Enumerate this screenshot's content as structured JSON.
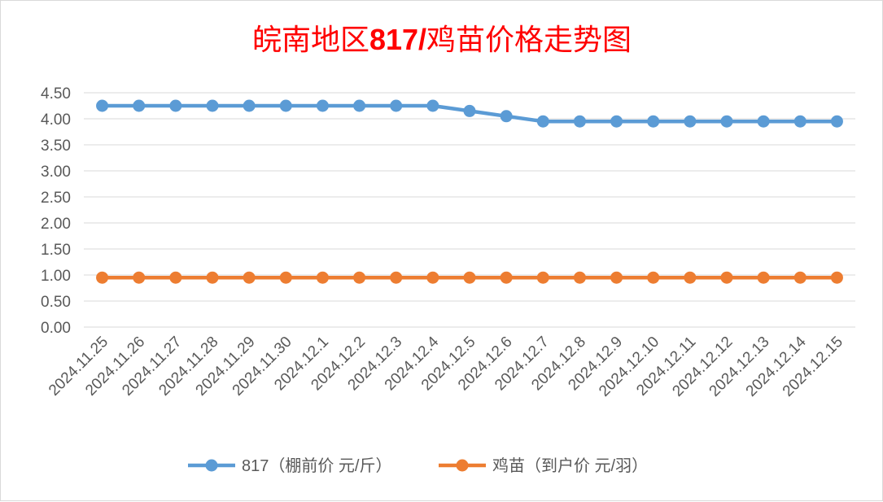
{
  "chart_data": {
    "type": "line",
    "title_cn": "皖南地区",
    "title_num": "817/",
    "title_cn2": "鸡苗价格走势图",
    "categories": [
      "2024.11.25",
      "2024.11.26",
      "2024.11.27",
      "2024.11.28",
      "2024.11.29",
      "2024.11.30",
      "2024.12.1",
      "2024.12.2",
      "2024.12.3",
      "2024.12.4",
      "2024.12.5",
      "2024.12.6",
      "2024.12.7",
      "2024.12.8",
      "2024.12.9",
      "2024.12.10",
      "2024.12.11",
      "2024.12.12",
      "2024.12.13",
      "2024.12.14",
      "2024.12.15"
    ],
    "ylim": [
      0,
      4.5
    ],
    "yticks": [
      "0.00",
      "0.50",
      "1.00",
      "1.50",
      "2.00",
      "2.50",
      "3.00",
      "3.50",
      "4.00",
      "4.50"
    ],
    "grid": true,
    "legend_position": "bottom",
    "series": [
      {
        "name": "817（棚前价 元/斤）",
        "color": "#5b9bd5",
        "values": [
          4.25,
          4.25,
          4.25,
          4.25,
          4.25,
          4.25,
          4.25,
          4.25,
          4.25,
          4.25,
          4.15,
          4.05,
          3.95,
          3.95,
          3.95,
          3.95,
          3.95,
          3.95,
          3.95,
          3.95,
          3.95
        ]
      },
      {
        "name": "鸡苗（到户价 元/羽）",
        "color": "#ed7d31",
        "values": [
          0.95,
          0.95,
          0.95,
          0.95,
          0.95,
          0.95,
          0.95,
          0.95,
          0.95,
          0.95,
          0.95,
          0.95,
          0.95,
          0.95,
          0.95,
          0.95,
          0.95,
          0.95,
          0.95,
          0.95,
          0.95
        ]
      }
    ]
  }
}
